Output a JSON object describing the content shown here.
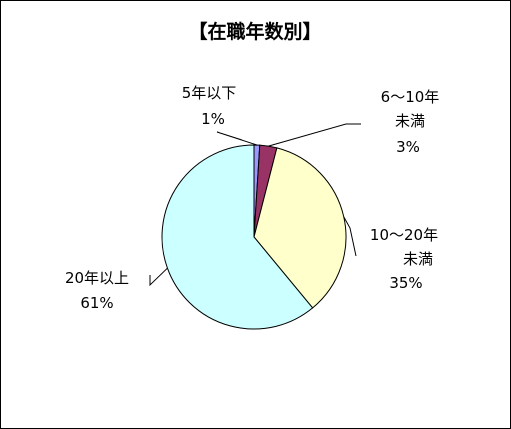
{
  "chart_data": {
    "type": "pie",
    "title": "【在職年数別】",
    "slices": [
      {
        "label_lines": [
          "5年以下"
        ],
        "pct_label": "1%",
        "value": 1,
        "color": "#9999ff"
      },
      {
        "label_lines": [
          "6～10年",
          "未満"
        ],
        "pct_label": "3%",
        "value": 3,
        "color": "#993366"
      },
      {
        "label_lines": [
          "10～20年",
          "未満"
        ],
        "pct_label": "35%",
        "value": 35,
        "color": "#ffffcc"
      },
      {
        "label_lines": [
          "20年以上"
        ],
        "pct_label": "61%",
        "value": 61,
        "color": "#ccffff"
      }
    ],
    "legend": "none"
  }
}
